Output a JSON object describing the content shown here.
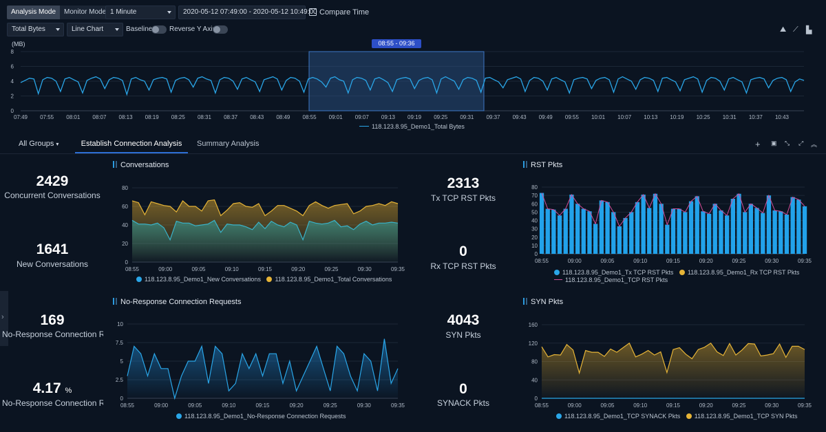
{
  "toolbar": {
    "modes": [
      "Analysis Mode",
      "Monitor Mode"
    ],
    "interval": "1 Minute",
    "time_range": "2020-05-12 07:49:00 - 2020-05-12 10:49:00",
    "compare_time": "Compare Time",
    "metric": "Total Bytes",
    "chart_type": "Line Chart",
    "baseline": "Baseline",
    "reverse_y": "Reverse Y Axis"
  },
  "timeline": {
    "unit": "(MB)",
    "selection": "08:55 - 09:36",
    "legend": "118.123.8.95_Demo1_Total Bytes",
    "y_ticks": [
      "8",
      "6",
      "4",
      "2",
      "0"
    ],
    "x_ticks": [
      "07:49",
      "07:55",
      "08:01",
      "08:07",
      "08:13",
      "08:19",
      "08:25",
      "08:31",
      "08:37",
      "08:43",
      "08:49",
      "08:55",
      "09:01",
      "09:07",
      "09:13",
      "09:19",
      "09:25",
      "09:31",
      "09:37",
      "09:43",
      "09:49",
      "09:55",
      "10:01",
      "10:07",
      "10:13",
      "10:19",
      "10:25",
      "10:31",
      "10:37",
      "10:43"
    ]
  },
  "tabs": {
    "groups": "All Groups",
    "items": [
      "Establish Connection Analysis",
      "Summary Analysis"
    ]
  },
  "kpis": [
    {
      "value": "2429",
      "label": "Concurrent Conversations"
    },
    {
      "value": "1641",
      "label": "New Conversations"
    },
    {
      "value": "169",
      "label": "No-Response Connection Requests"
    },
    {
      "value": "4.17",
      "unit": "%",
      "label": "No-Response Connection Rate"
    },
    {
      "value": "2313",
      "label": "Tx TCP RST Pkts"
    },
    {
      "value": "0",
      "label": "Rx TCP RST Pkts"
    },
    {
      "value": "4043",
      "label": "SYN Pkts"
    },
    {
      "value": "0",
      "label": "SYNACK Pkts"
    }
  ],
  "panels": {
    "conv_title": "Conversations",
    "conv_legend": [
      "118.123.8.95_Demo1_New Conversations",
      "118.123.8.95_Demo1_Total Conversations"
    ],
    "rst_title": "RST Pkts",
    "rst_legend": [
      "118.123.8.95_Demo1_Tx TCP RST Pkts",
      "118.123.8.95_Demo1_Rx TCP RST Pkts",
      "118.123.8.95_Demo1_TCP RST Pkts"
    ],
    "noresp_title": "No-Response Connection Requests",
    "noresp_legend": [
      "118.123.8.95_Demo1_No-Response Connection Requests"
    ],
    "syn_title": "SYN Pkts",
    "syn_legend": [
      "118.123.8.95_Demo1_TCP SYNACK Pkts",
      "118.123.8.95_Demo1_TCP SYN Pkts"
    ],
    "x_ticks": [
      "08:55",
      "09:00",
      "09:05",
      "09:10",
      "09:15",
      "09:20",
      "09:25",
      "09:30",
      "09:35"
    ]
  },
  "colors": {
    "blue": "#2aa6e8",
    "yellow": "#e6b437",
    "teal": "#3ab3c9",
    "pink": "#d24e9a",
    "accent": "#2d6fd6"
  },
  "chart_data": [
    {
      "type": "line",
      "title": "Total Bytes",
      "ylabel": "(MB)",
      "ylim": [
        0,
        8
      ],
      "series": [
        {
          "name": "118.123.8.95_Demo1_Total Bytes",
          "values": [
            3.8,
            4.1,
            4.4,
            4.3,
            2.3,
            4.2,
            4.5,
            4.4,
            4.0,
            2.6,
            4.3,
            4.5,
            4.2,
            3.9,
            2.4,
            4.1,
            4.4,
            4.6,
            4.3,
            3.0,
            4.2,
            4.5,
            4.4,
            4.1,
            2.2,
            4.3,
            4.5,
            4.2,
            4.0,
            2.8,
            4.2,
            4.4,
            4.5,
            4.3,
            2.5,
            4.1,
            4.4,
            4.5,
            4.2,
            3.2,
            4.4,
            4.6,
            4.3,
            4.1,
            2.4,
            4.2,
            4.5,
            4.4,
            4.0,
            2.9,
            4.3,
            4.5,
            4.2,
            3.9,
            2.6,
            4.2,
            4.4,
            4.6,
            4.3,
            2.8,
            4.1,
            4.5,
            4.4,
            4.0,
            2.5,
            4.3,
            4.5,
            4.3,
            3.9,
            3.2,
            4.4,
            4.6,
            4.2,
            4.0,
            2.4,
            4.2,
            4.5,
            4.4,
            4.1,
            2.8,
            4.3,
            4.5,
            4.2,
            3.8,
            2.6,
            4.2,
            4.4,
            4.5,
            4.3,
            3.0,
            4.1,
            4.4,
            4.5,
            4.2,
            2.4,
            4.3,
            4.6,
            4.3,
            4.0,
            2.9,
            4.2,
            4.5,
            4.4,
            4.1,
            2.5,
            4.4,
            4.5,
            4.2,
            3.9,
            3.1,
            4.2,
            4.4,
            4.6,
            4.3,
            2.6,
            4.1,
            4.5,
            4.4,
            4.0,
            2.8,
            4.3,
            4.5,
            4.2,
            3.9,
            2.4,
            4.2,
            4.4,
            4.5,
            4.3,
            3.0,
            4.1,
            4.4,
            4.5,
            4.2,
            2.5,
            4.3,
            4.6,
            4.3,
            4.0,
            2.9,
            4.2,
            4.5,
            4.4,
            4.1,
            2.6,
            4.4,
            4.5,
            4.2,
            3.9,
            2.7,
            4.2,
            4.4,
            4.6,
            4.3,
            2.5,
            4.1,
            4.5,
            4.4,
            4.0,
            2.8,
            4.3,
            4.5,
            4.2,
            3.9,
            2.4,
            4.2,
            4.4,
            4.5,
            4.3,
            3.1,
            4.1,
            4.4,
            4.5,
            4.2,
            2.6,
            3.9,
            4.3,
            4.1
          ]
        }
      ]
    },
    {
      "type": "area",
      "title": "Conversations",
      "ylim": [
        0,
        80
      ],
      "series": [
        {
          "name": "118.123.8.95_Demo1_New Conversations",
          "values": [
            45,
            41,
            41,
            40,
            42,
            37,
            24,
            44,
            42,
            42,
            39,
            40,
            41,
            45,
            32,
            41,
            40,
            40,
            38,
            35,
            43,
            36,
            44,
            40,
            38,
            43,
            40,
            24,
            44,
            42,
            41,
            42,
            45,
            38,
            39,
            35,
            41,
            44,
            40,
            42,
            42,
            43,
            42
          ]
        },
        {
          "name": "118.123.8.95_Demo1_Total Conversations",
          "values": [
            66,
            64,
            51,
            65,
            63,
            61,
            60,
            54,
            66,
            60,
            60,
            55,
            66,
            67,
            50,
            56,
            63,
            64,
            60,
            59,
            63,
            50,
            55,
            61,
            61,
            58,
            55,
            50,
            61,
            65,
            61,
            58,
            61,
            62,
            63,
            52,
            55,
            60,
            61,
            63,
            61,
            65,
            63
          ]
        }
      ]
    },
    {
      "type": "bar",
      "title": "RST Pkts",
      "ylim": [
        0,
        80
      ],
      "series": [
        {
          "name": "118.123.8.95_Demo1_Tx TCP RST Pkts",
          "values": [
            73,
            54,
            53,
            46,
            54,
            71,
            60,
            54,
            51,
            36,
            64,
            62,
            50,
            33,
            43,
            50,
            62,
            71,
            55,
            72,
            60,
            35,
            54,
            54,
            50,
            63,
            69,
            51,
            48,
            60,
            52,
            46,
            66,
            72,
            50,
            60,
            55,
            49,
            70,
            52,
            51,
            47,
            68,
            65,
            57
          ]
        },
        {
          "name": "118.123.8.95_Demo1_Rx TCP RST Pkts",
          "values": [
            0,
            0,
            0,
            0,
            0,
            0,
            0,
            0,
            0,
            0,
            0,
            0,
            0,
            0,
            0,
            0,
            0,
            0,
            0,
            0,
            0,
            0,
            0,
            0,
            0,
            0,
            0,
            0,
            0,
            0,
            0,
            0,
            0,
            0,
            0,
            0,
            0,
            0,
            0,
            0,
            0,
            0,
            0,
            0,
            0
          ]
        },
        {
          "name": "118.123.8.95_Demo1_TCP RST Pkts",
          "values": [
            73,
            54,
            53,
            46,
            54,
            71,
            60,
            54,
            51,
            36,
            64,
            62,
            50,
            33,
            43,
            50,
            62,
            71,
            55,
            72,
            60,
            35,
            54,
            54,
            50,
            63,
            69,
            51,
            48,
            60,
            52,
            46,
            66,
            72,
            50,
            60,
            55,
            49,
            70,
            52,
            51,
            47,
            68,
            65,
            57
          ]
        }
      ]
    },
    {
      "type": "area",
      "title": "No-Response Connection Requests",
      "ylim": [
        0,
        10
      ],
      "series": [
        {
          "name": "118.123.8.95_Demo1_No-Response Connection Requests",
          "values": [
            3,
            7,
            6,
            3,
            6,
            4,
            4,
            0,
            3,
            5,
            5,
            7,
            2,
            7,
            6,
            1,
            2,
            6,
            4,
            6,
            3,
            6,
            6,
            2,
            5,
            1,
            3,
            5,
            7,
            4,
            1,
            7,
            6,
            3,
            1,
            6,
            5,
            1,
            8,
            2,
            4
          ]
        }
      ]
    },
    {
      "type": "area",
      "title": "SYN Pkts",
      "ylim": [
        0,
        160
      ],
      "series": [
        {
          "name": "118.123.8.95_Demo1_TCP SYNACK Pkts",
          "values": [
            0,
            0,
            0,
            0,
            0,
            0,
            0,
            0,
            0,
            0,
            0,
            0,
            0,
            0,
            0,
            0,
            0,
            0,
            0,
            0,
            0,
            0,
            0,
            0,
            0,
            0,
            0,
            0,
            0,
            0,
            0,
            0,
            0,
            0,
            0,
            0,
            0,
            0,
            0,
            0,
            0,
            0,
            0
          ]
        },
        {
          "name": "118.123.8.95_Demo1_TCP SYN Pkts",
          "values": [
            112,
            90,
            95,
            94,
            117,
            105,
            55,
            104,
            100,
            100,
            91,
            107,
            100,
            110,
            120,
            90,
            96,
            104,
            94,
            101,
            56,
            106,
            110,
            96,
            86,
            106,
            111,
            120,
            101,
            93,
            119,
            94,
            105,
            119,
            118,
            92,
            94,
            97,
            118,
            89,
            113,
            113,
            106
          ]
        }
      ]
    }
  ]
}
